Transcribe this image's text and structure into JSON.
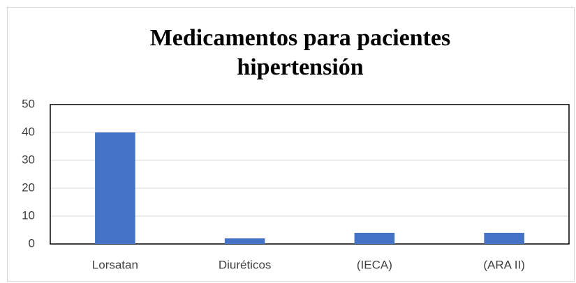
{
  "chart_data": {
    "type": "bar",
    "title": "Medicamentos para pacientes hipertensión",
    "categories": [
      "Lorsatan",
      "Diuréticos",
      "(IECA)",
      "(ARA II)"
    ],
    "values": [
      40,
      2,
      4,
      4
    ],
    "color": "#4472c4",
    "ylim": [
      0,
      50
    ],
    "yticks": [
      0,
      10,
      20,
      30,
      40,
      50
    ],
    "grid": true
  }
}
